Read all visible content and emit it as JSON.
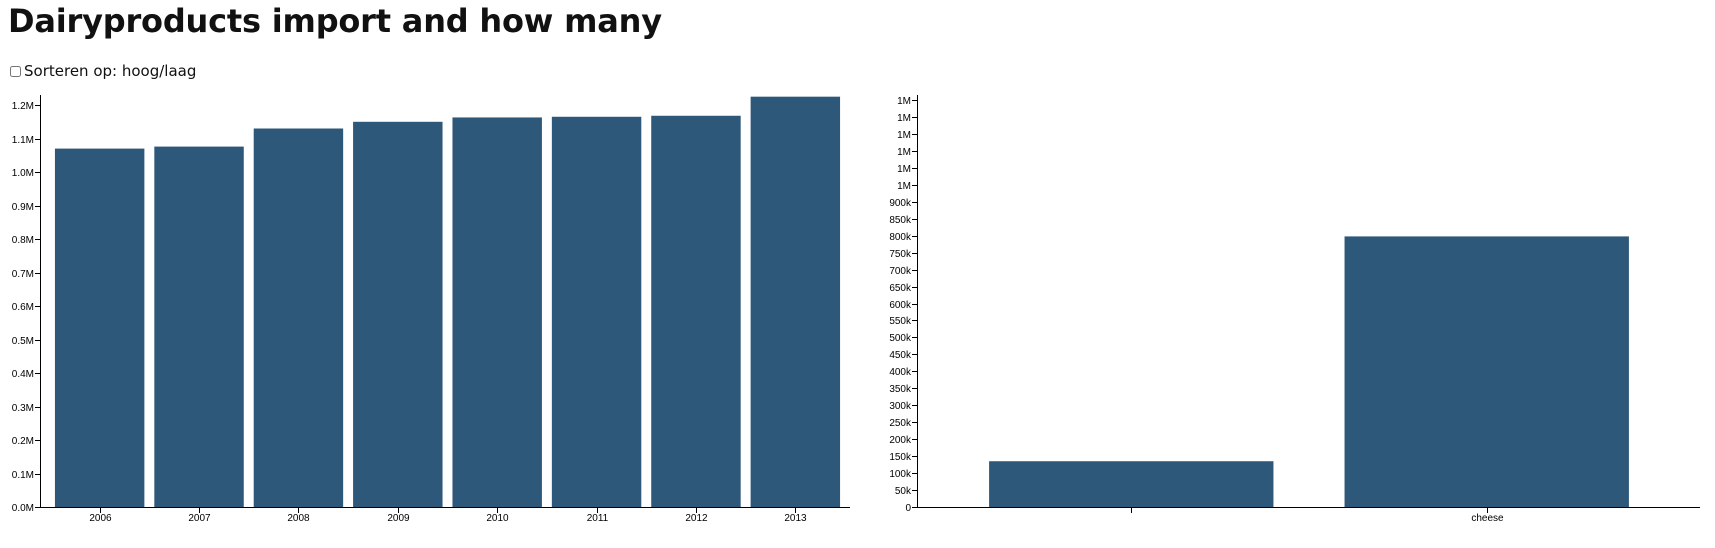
{
  "page": {
    "title": "Dairyproducts import and how many",
    "sort_label": "Sorteren op: hoog/laag",
    "sort_checked": false
  },
  "colors": {
    "bar": "#2e5879",
    "axis": "#000000"
  },
  "chart_data": [
    {
      "type": "bar",
      "title": "",
      "xlabel": "",
      "ylabel": "",
      "categories": [
        "2006",
        "2007",
        "2008",
        "2009",
        "2010",
        "2011",
        "2012",
        "2013"
      ],
      "values": [
        1070000,
        1076000,
        1130000,
        1150000,
        1163000,
        1165000,
        1168000,
        1225000
      ],
      "ylim": [
        0,
        1230000
      ],
      "y_ticks": [
        0,
        100000,
        200000,
        300000,
        400000,
        500000,
        600000,
        700000,
        800000,
        900000,
        1000000,
        1100000,
        1200000
      ],
      "y_tick_labels": [
        "0.0M",
        "0.1M",
        "0.2M",
        "0.3M",
        "0.4M",
        "0.5M",
        "0.6M",
        "0.7M",
        "0.8M",
        "0.9M",
        "1.0M",
        "1.1M",
        "1.2M"
      ],
      "grid": false
    },
    {
      "type": "bar",
      "title": "",
      "xlabel": "",
      "ylabel": "",
      "categories": [
        "",
        "cheese"
      ],
      "values": [
        135000,
        798000
      ],
      "ylim": [
        0,
        1215000
      ],
      "y_ticks": [
        0,
        50000,
        100000,
        150000,
        200000,
        250000,
        300000,
        350000,
        400000,
        450000,
        500000,
        550000,
        600000,
        650000,
        700000,
        750000,
        800000,
        850000,
        900000,
        950000,
        1000000,
        1050000,
        1100000,
        1150000,
        1200000
      ],
      "y_tick_labels": [
        "0",
        "50k",
        "100k",
        "150k",
        "200k",
        "250k",
        "300k",
        "350k",
        "400k",
        "450k",
        "500k",
        "550k",
        "600k",
        "650k",
        "700k",
        "750k",
        "800k",
        "850k",
        "900k",
        "1M",
        "1M",
        "1M",
        "1M",
        "1M",
        "1M"
      ],
      "grid": false
    }
  ]
}
